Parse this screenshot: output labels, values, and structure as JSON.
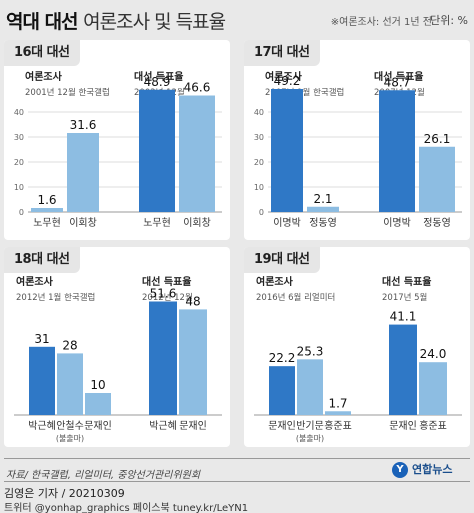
{
  "header": {
    "title": "역대 대선",
    "subtitle": "여론조사 및 득표율",
    "note": "※여론조사: 선거 1년 전",
    "unit": "단위: %"
  },
  "colors": {
    "poll_bar": "#8dbde2",
    "vote_bar": "#2f78c6",
    "panel_bg": "#ffffff",
    "page_bg": "#e9e9e9",
    "tab_bg": "#e6e6e6"
  },
  "chart_data": [
    {
      "type": "bar",
      "title": "16대 대선",
      "ylim": [
        0,
        50
      ],
      "yticks": [
        0,
        10,
        20,
        30,
        40
      ],
      "groups": [
        {
          "name": "여론조사",
          "date": "2001년 12월 한국갤럽",
          "categories": [
            "노무현",
            "이회창"
          ],
          "values": [
            1.6,
            31.6
          ],
          "notes": [
            "",
            ""
          ],
          "color": "#8dbde2"
        },
        {
          "name": "대선 득표율",
          "date": "2002년 12월",
          "categories": [
            "노무현",
            "이회창"
          ],
          "values": [
            48.9,
            46.6
          ],
          "notes": [
            "",
            ""
          ],
          "color": "#2f78c6"
        }
      ]
    },
    {
      "type": "bar",
      "title": "17대 대선",
      "ylim": [
        0,
        50
      ],
      "yticks": [
        0,
        10,
        20,
        30,
        40
      ],
      "groups": [
        {
          "name": "여론조사",
          "date": "2007년 1월 한국갤럽",
          "categories": [
            "이명박",
            "정동영"
          ],
          "values": [
            49.2,
            2.1
          ],
          "notes": [
            "",
            ""
          ],
          "color": "#2f78c6"
        },
        {
          "name": "대선 득표율",
          "date": "2007년 12월",
          "categories": [
            "이명박",
            "정동영"
          ],
          "values": [
            48.7,
            26.1
          ],
          "notes": [
            "",
            ""
          ],
          "color": "#2f78c6"
        }
      ]
    },
    {
      "type": "bar",
      "title": "18대 대선",
      "ylim": [
        0,
        50
      ],
      "yticks": [],
      "groups": [
        {
          "name": "여론조사",
          "date": "2012년 1월 한국갤럽",
          "categories": [
            "박근혜",
            "안철수",
            "문재인"
          ],
          "values": [
            31,
            28,
            10
          ],
          "notes": [
            "",
            "(불출마)",
            ""
          ],
          "color": "#8dbde2"
        },
        {
          "name": "대선 득표율",
          "date": "2012년 12월",
          "categories": [
            "박근혜",
            "문재인"
          ],
          "values": [
            51.6,
            48.0
          ],
          "notes": [
            "",
            ""
          ],
          "color": "#2f78c6"
        }
      ]
    },
    {
      "type": "bar",
      "title": "19대 대선",
      "ylim": [
        0,
        50
      ],
      "yticks": [],
      "groups": [
        {
          "name": "여론조사",
          "date": "2016년 6월 리얼미터",
          "categories": [
            "문재인",
            "반기문",
            "홍준표"
          ],
          "values": [
            22.2,
            25.3,
            1.7
          ],
          "notes": [
            "",
            "(불출마)",
            ""
          ],
          "color": "#8dbde2"
        },
        {
          "name": "대선 득표율",
          "date": "2017년 5월",
          "categories": [
            "문재인",
            "홍준표"
          ],
          "values": [
            41.1,
            24.0
          ],
          "notes": [
            "",
            ""
          ],
          "color": "#2f78c6"
        }
      ]
    }
  ],
  "footer": {
    "source": "자료/ 한국갤럽, 리얼미터, 중앙선거관리위원회",
    "byline": "김영은 기자 / 20210309",
    "sns": "트위터 @yonhap_graphics  페이스북 tuney.kr/LeYN1",
    "logo_text": "연합뉴스",
    "logo_mark": "Y"
  }
}
